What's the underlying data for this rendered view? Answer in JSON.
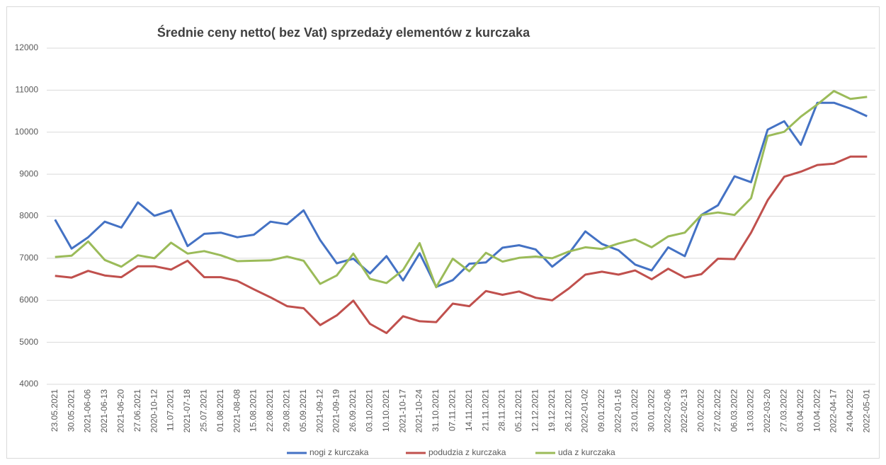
{
  "chart_data": {
    "type": "line",
    "title": "Średnie ceny netto( bez Vat) sprzedaży elementów z kurczaka",
    "categories": [
      "23.05.2021",
      "30.05.2021",
      "2021-06-06",
      "2021-06-13",
      "2021-06-20",
      "27.06.2021",
      "2020-10-12",
      "11.07.2021",
      "2021-07-18",
      "25.07.2021",
      "01.08.2021",
      "2021-08-08",
      "15.08.2021",
      "22.08.2021",
      "29.08.2021",
      "05.09.2021",
      "2021-09-12",
      "2021-09-19",
      "26.09.2021",
      "03.10.2021",
      "10.10.2021",
      "2021-10-17",
      "2021-10-24",
      "31.10.2021",
      "07.11.2021",
      "14.11.2021",
      "21.11.2021",
      "28.11.2021",
      "05.12.2021",
      "12.12.2021",
      "19.12.2021",
      "26.12.2021",
      "2022-01-02",
      "09.01.2022",
      "2022-01-16",
      "23.01.2022",
      "30.01.2022",
      "2022-02-06",
      "2022-02-13",
      "20.02.2022",
      "27.02.2022",
      "06.03.2022",
      "13.03.2022",
      "2022-03-20",
      "27.03.2022",
      "03.04.2022",
      "10.04.2022",
      "2022-04-17",
      "24.04.2022",
      "2022-05-01"
    ],
    "series": [
      {
        "name": "nogi z kurczaka",
        "color": "#4472c4",
        "values": [
          7920,
          7230,
          7500,
          7870,
          7730,
          8330,
          8010,
          8140,
          7290,
          7580,
          7610,
          7500,
          7560,
          7870,
          7810,
          8140,
          7430,
          6880,
          6990,
          6640,
          7050,
          6470,
          7120,
          6320,
          6480,
          6870,
          6900,
          7250,
          7310,
          7210,
          6800,
          7110,
          7640,
          7340,
          7190,
          6850,
          6710,
          7260,
          7050,
          8030,
          8260,
          8950,
          8810,
          10060,
          10260,
          9700,
          10700,
          10700,
          10560,
          10380
        ]
      },
      {
        "name": "podudzia z kurczaka",
        "color": "#c0504d",
        "values": [
          6580,
          6540,
          6700,
          6590,
          6550,
          6810,
          6810,
          6730,
          6940,
          6550,
          6550,
          6460,
          6260,
          6070,
          5860,
          5810,
          5410,
          5640,
          5990,
          5440,
          5220,
          5620,
          5500,
          5480,
          5920,
          5860,
          6220,
          6130,
          6210,
          6060,
          6000,
          6280,
          6610,
          6680,
          6610,
          6710,
          6500,
          6750,
          6540,
          6620,
          6990,
          6980,
          7610,
          8380,
          8940,
          9060,
          9220,
          9250,
          9420,
          9420
        ]
      },
      {
        "name": "uda z kurczaka",
        "color": "#9bbb59",
        "values": [
          7030,
          7060,
          7400,
          6960,
          6800,
          7070,
          7000,
          7370,
          7110,
          7170,
          7070,
          6930,
          6940,
          6950,
          7040,
          6940,
          6390,
          6590,
          7110,
          6510,
          6410,
          6720,
          7360,
          6310,
          6990,
          6690,
          7130,
          6920,
          7010,
          7040,
          7000,
          7160,
          7260,
          7220,
          7350,
          7450,
          7260,
          7520,
          7610,
          8030,
          8090,
          8030,
          8430,
          9910,
          10010,
          10370,
          10660,
          10980,
          10790,
          10840
        ]
      }
    ],
    "ylim": [
      4000,
      12000
    ],
    "yticks": [
      4000,
      5000,
      6000,
      7000,
      8000,
      9000,
      10000,
      11000,
      12000
    ],
    "grid": true,
    "legend": "bottom"
  }
}
